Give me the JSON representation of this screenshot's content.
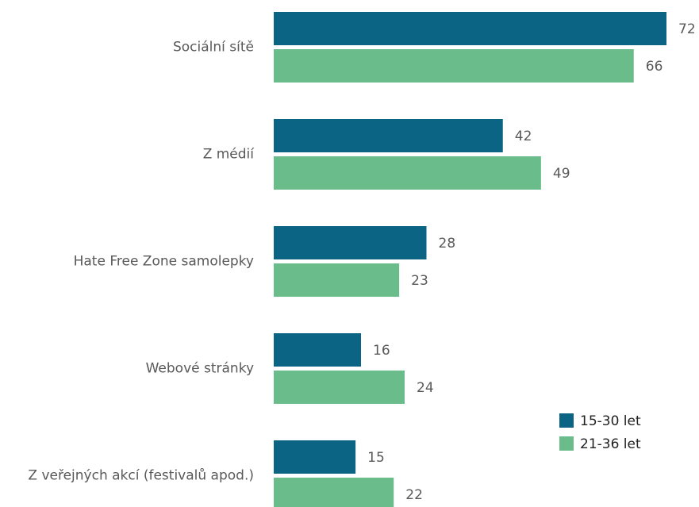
{
  "chart_data": {
    "type": "hbar",
    "categories": [
      "Sociální sítě",
      "Z médií",
      "Hate Free Zone samolepky",
      "Webové stránky",
      "Z veřejných akcí (festivalů apod.)"
    ],
    "series": [
      {
        "name": "15-30 let",
        "color": "#0b6483",
        "values": [
          72,
          42,
          28,
          16,
          15
        ]
      },
      {
        "name": "21-36 let",
        "color": "#6bbc8b",
        "values": [
          66,
          49,
          23,
          24,
          22
        ]
      }
    ],
    "legend": "lower right"
  }
}
